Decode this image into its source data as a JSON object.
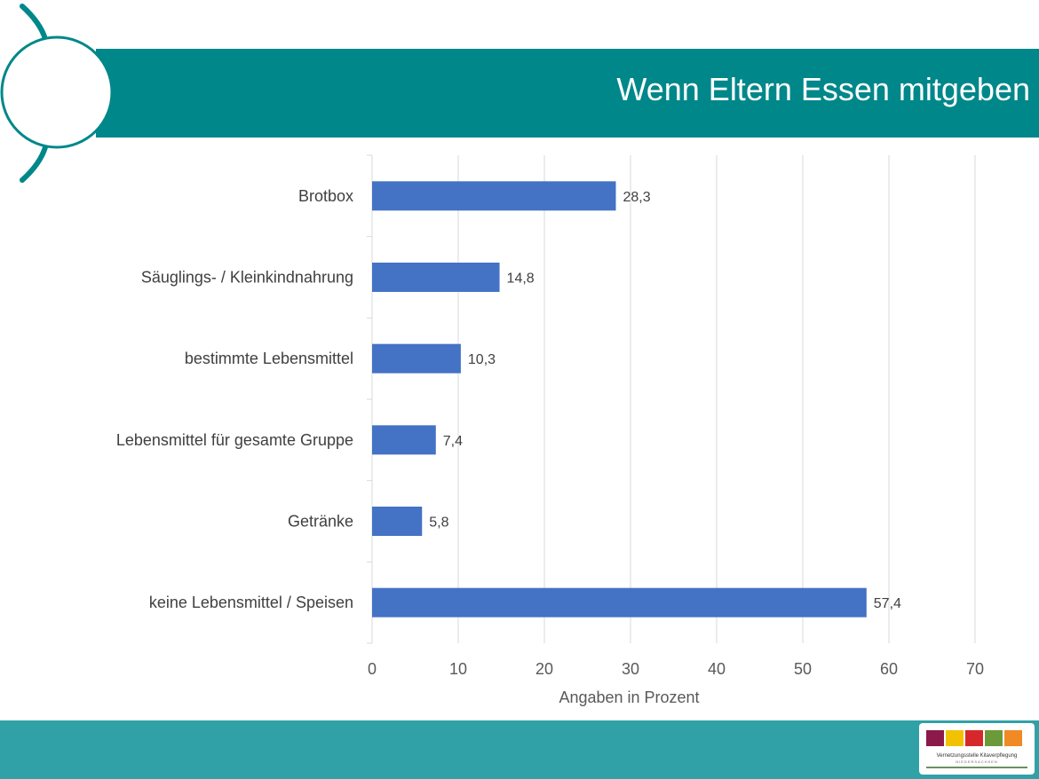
{
  "header": {
    "title": "Wenn Eltern Essen mitgeben"
  },
  "colors": {
    "banner": "#00878a",
    "bar": "#4472c4",
    "footer": "#30a1a7"
  },
  "logo": {
    "text": "Vernetzungsstelle Kitaverpflegung Niedersachsen"
  },
  "chart_data": {
    "type": "bar",
    "orientation": "horizontal",
    "title": "Wenn Eltern Essen mitgeben",
    "categories": [
      "Brotbox",
      "Säuglings- / Kleinkindnahrung",
      "bestimmte Lebensmittel",
      "Lebensmittel für gesamte Gruppe",
      "Getränke",
      "keine Lebensmittel / Speisen"
    ],
    "values": [
      28.3,
      14.8,
      10.3,
      7.4,
      5.8,
      57.4
    ],
    "value_labels": [
      "28,3",
      "14,8",
      "10,3",
      "7,4",
      "5,8",
      "57,4"
    ],
    "xlabel": "Angaben in Prozent",
    "ylabel": "",
    "xlim": [
      0,
      70
    ],
    "xticks": [
      0,
      10,
      20,
      30,
      40,
      50,
      60,
      70
    ],
    "grid": true,
    "legend": "none"
  }
}
